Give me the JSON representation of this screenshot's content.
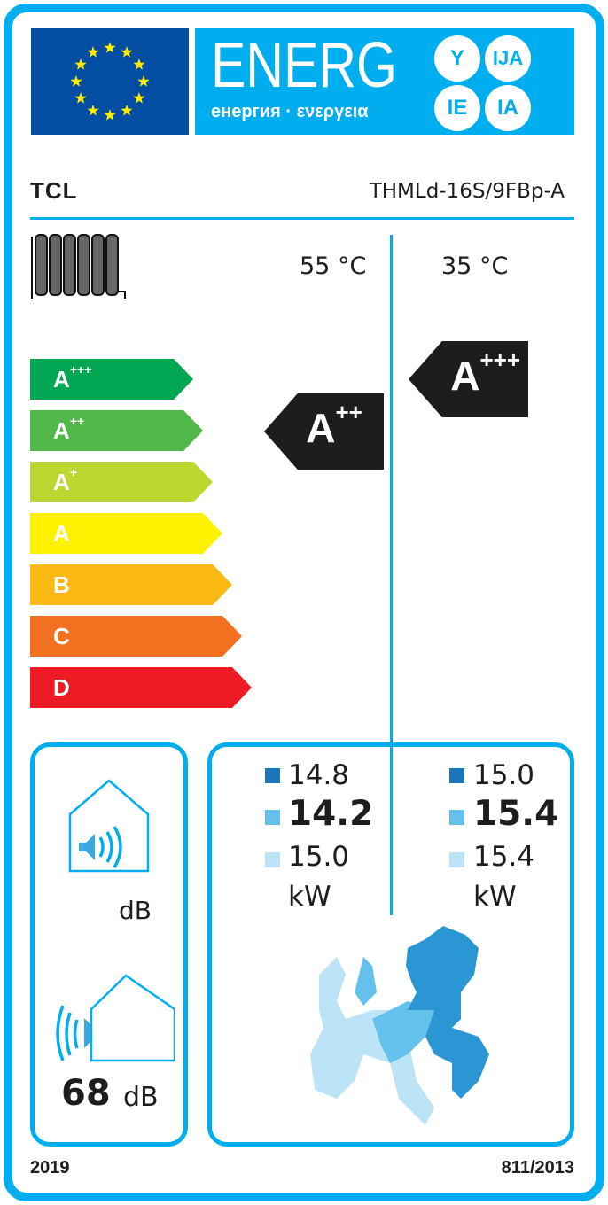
{
  "header": {
    "energy_word": "ENERG",
    "energy_subtitle": "енергия · ενεργεια",
    "suffixes": [
      "Y",
      "IJA",
      "IE",
      "IA"
    ]
  },
  "supplier": "TCL",
  "model": "THMLd-16S/9FBp-A",
  "temperatures": {
    "medium": "55 °C",
    "low": "35 °C"
  },
  "scale": [
    {
      "letter": "A",
      "plus": "+++",
      "color": "#00a651"
    },
    {
      "letter": "A",
      "plus": "++",
      "color": "#50b848"
    },
    {
      "letter": "A",
      "plus": "+",
      "color": "#bed630"
    },
    {
      "letter": "A",
      "plus": "",
      "color": "#fff200"
    },
    {
      "letter": "B",
      "plus": "",
      "color": "#fdb913"
    },
    {
      "letter": "C",
      "plus": "",
      "color": "#f37021"
    },
    {
      "letter": "D",
      "plus": "",
      "color": "#ed1c24"
    }
  ],
  "class_55": {
    "letter": "A",
    "plus": "++"
  },
  "class_35": {
    "letter": "A",
    "plus": "+++"
  },
  "noise": {
    "indoor_unit": "dB",
    "outdoor_value": "68",
    "outdoor_unit": "dB"
  },
  "power": {
    "col55": {
      "colder": "14.8",
      "average": "14.2",
      "warmer": "15.0",
      "unit": "kW"
    },
    "col35": {
      "colder": "15.0",
      "average": "15.4",
      "warmer": "15.4",
      "unit": "kW"
    },
    "zone_colors": {
      "colder": "#1a75bb",
      "average": "#63c1ec",
      "warmer": "#bde3f6"
    }
  },
  "footer": {
    "year": "2019",
    "regulation": "811/2013"
  },
  "colors": {
    "border": "#00aeef",
    "flag": "#034ea2",
    "star": "#ffed00"
  }
}
